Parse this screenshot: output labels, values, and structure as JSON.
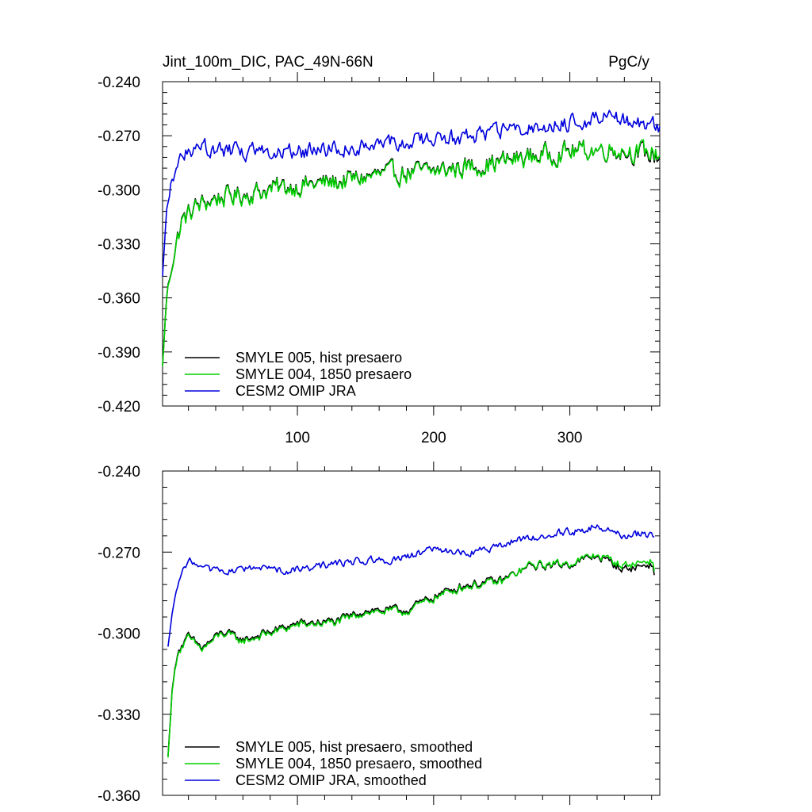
{
  "chart_data": [
    {
      "type": "line",
      "title": "Jint_100m_DIC, PAC_49N-66N",
      "units": "PgC/y",
      "xlim": [
        1,
        366
      ],
      "ylim": [
        -0.42,
        -0.24
      ],
      "xticks": [
        100,
        200,
        300
      ],
      "xtick_labels": [
        "100",
        "200",
        "300"
      ],
      "yticks": [
        -0.42,
        -0.39,
        -0.36,
        -0.33,
        -0.3,
        -0.27,
        -0.24
      ],
      "ytick_labels": [
        "-0.420",
        "-0.390",
        "-0.360",
        "-0.330",
        "-0.300",
        "-0.270",
        "-0.240"
      ],
      "legend": [
        "SMYLE 005, hist presaero",
        "SMYLE 004, 1850 presaero",
        "CESM2 OMIP JRA"
      ],
      "legend_position": "bottom-left",
      "series": [
        {
          "name": "SMYLE 005, hist presaero",
          "color": "#000000",
          "anchors": [
            [
              1,
              -0.398
            ],
            [
              4,
              -0.36
            ],
            [
              8,
              -0.34
            ],
            [
              15,
              -0.318
            ],
            [
              25,
              -0.31
            ],
            [
              40,
              -0.305
            ],
            [
              60,
              -0.303
            ],
            [
              80,
              -0.3
            ],
            [
              100,
              -0.298
            ],
            [
              130,
              -0.296
            ],
            [
              160,
              -0.292
            ],
            [
              200,
              -0.29
            ],
            [
              240,
              -0.286
            ],
            [
              270,
              -0.282
            ],
            [
              300,
              -0.279
            ],
            [
              330,
              -0.278
            ],
            [
              366,
              -0.282
            ]
          ],
          "noise": 0.009
        },
        {
          "name": "SMYLE 004, 1850 presaero",
          "color": "#00d000",
          "anchors": [
            [
              1,
              -0.398
            ],
            [
              4,
              -0.36
            ],
            [
              8,
              -0.34
            ],
            [
              15,
              -0.318
            ],
            [
              25,
              -0.31
            ],
            [
              40,
              -0.305
            ],
            [
              60,
              -0.303
            ],
            [
              80,
              -0.3
            ],
            [
              100,
              -0.298
            ],
            [
              130,
              -0.296
            ],
            [
              160,
              -0.292
            ],
            [
              200,
              -0.29
            ],
            [
              240,
              -0.286
            ],
            [
              270,
              -0.282
            ],
            [
              300,
              -0.279
            ],
            [
              330,
              -0.277
            ],
            [
              366,
              -0.28
            ]
          ],
          "noise": 0.009
        },
        {
          "name": "CESM2 OMIP JRA",
          "color": "#0000dd",
          "anchors": [
            [
              1,
              -0.348
            ],
            [
              4,
              -0.31
            ],
            [
              8,
              -0.296
            ],
            [
              15,
              -0.281
            ],
            [
              25,
              -0.276
            ],
            [
              60,
              -0.279
            ],
            [
              100,
              -0.279
            ],
            [
              140,
              -0.276
            ],
            [
              180,
              -0.273
            ],
            [
              220,
              -0.271
            ],
            [
              260,
              -0.267
            ],
            [
              300,
              -0.263
            ],
            [
              330,
              -0.26
            ],
            [
              366,
              -0.265
            ]
          ],
          "noise": 0.007
        }
      ]
    },
    {
      "type": "line",
      "title": "",
      "xlim": [
        1,
        366
      ],
      "ylim": [
        -0.36,
        -0.24
      ],
      "yticks": [
        -0.36,
        -0.33,
        -0.3,
        -0.27,
        -0.24
      ],
      "ytick_labels": [
        "-0.360",
        "-0.330",
        "-0.300",
        "-0.270",
        "-0.240"
      ],
      "legend": [
        "SMYLE 005, hist presaero, smoothed",
        "SMYLE 004, 1850 presaero, smoothed",
        "CESM2 OMIP JRA, smoothed"
      ],
      "legend_position": "bottom-left",
      "series": [
        {
          "name": "SMYLE 005, hist presaero, smoothed",
          "color": "#000000",
          "anchors": [
            [
              5,
              -0.346
            ],
            [
              8,
              -0.322
            ],
            [
              12,
              -0.307
            ],
            [
              20,
              -0.302
            ],
            [
              30,
              -0.306
            ],
            [
              45,
              -0.3
            ],
            [
              60,
              -0.303
            ],
            [
              80,
              -0.3
            ],
            [
              100,
              -0.297
            ],
            [
              130,
              -0.296
            ],
            [
              150,
              -0.292
            ],
            [
              180,
              -0.292
            ],
            [
              200,
              -0.287
            ],
            [
              220,
              -0.283
            ],
            [
              250,
              -0.281
            ],
            [
              270,
              -0.276
            ],
            [
              300,
              -0.275
            ],
            [
              320,
              -0.272
            ],
            [
              340,
              -0.277
            ],
            [
              360,
              -0.275
            ],
            [
              362,
              -0.278
            ]
          ],
          "noise": 0.0025
        },
        {
          "name": "SMYLE 004, 1850 presaero, smoothed",
          "color": "#00d000",
          "anchors": [
            [
              5,
              -0.346
            ],
            [
              8,
              -0.322
            ],
            [
              12,
              -0.307
            ],
            [
              20,
              -0.302
            ],
            [
              30,
              -0.306
            ],
            [
              45,
              -0.3
            ],
            [
              60,
              -0.303
            ],
            [
              80,
              -0.3
            ],
            [
              100,
              -0.297
            ],
            [
              130,
              -0.296
            ],
            [
              150,
              -0.292
            ],
            [
              180,
              -0.292
            ],
            [
              200,
              -0.287
            ],
            [
              220,
              -0.283
            ],
            [
              250,
              -0.281
            ],
            [
              270,
              -0.275
            ],
            [
              300,
              -0.274
            ],
            [
              320,
              -0.271
            ],
            [
              340,
              -0.275
            ],
            [
              360,
              -0.273
            ],
            [
              362,
              -0.276
            ]
          ],
          "noise": 0.0025
        },
        {
          "name": "CESM2 OMIP JRA, smoothed",
          "color": "#0000dd",
          "anchors": [
            [
              5,
              -0.305
            ],
            [
              9,
              -0.29
            ],
            [
              14,
              -0.279
            ],
            [
              20,
              -0.273
            ],
            [
              30,
              -0.276
            ],
            [
              50,
              -0.277
            ],
            [
              70,
              -0.276
            ],
            [
              90,
              -0.277
            ],
            [
              110,
              -0.276
            ],
            [
              130,
              -0.274
            ],
            [
              150,
              -0.273
            ],
            [
              170,
              -0.273
            ],
            [
              200,
              -0.269
            ],
            [
              230,
              -0.27
            ],
            [
              260,
              -0.266
            ],
            [
              290,
              -0.263
            ],
            [
              310,
              -0.262
            ],
            [
              320,
              -0.26
            ],
            [
              340,
              -0.264
            ],
            [
              355,
              -0.263
            ],
            [
              362,
              -0.264
            ]
          ],
          "noise": 0.0022
        }
      ]
    }
  ]
}
